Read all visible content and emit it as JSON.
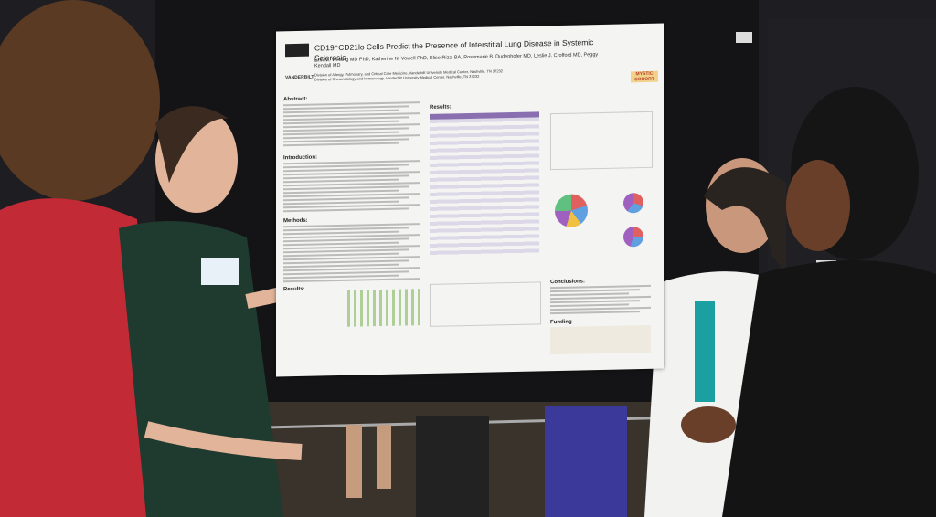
{
  "poster": {
    "title": "CD19⁺CD21lo Cells Predict the Presence of Interstitial Lung Disease in Systemic Sclerosis",
    "authors": "Erin M. Wilfong MD PhD, Katherine N. Vowell PhD, Elise Rizzi BA, Rosemarie B. Dudenhofer MD, Leslie J. Crofford MD, Peggy Kendall MD",
    "affiliations": [
      "Division of Allergy, Pulmonary, and Critical Care Medicine, Vanderbilt University Medical Center, Nashville, TN 37232",
      "Division of Rheumatology and Immunology, Vanderbilt University Medical Center, Nashville, TN 37232"
    ],
    "institution": "VANDERBILT",
    "logo": "MYSTIC COHORT",
    "sections": [
      "Abstract:",
      "Introduction:",
      "Methods:",
      "Results:",
      "Results:",
      "Conclusions:",
      "Funding"
    ]
  }
}
